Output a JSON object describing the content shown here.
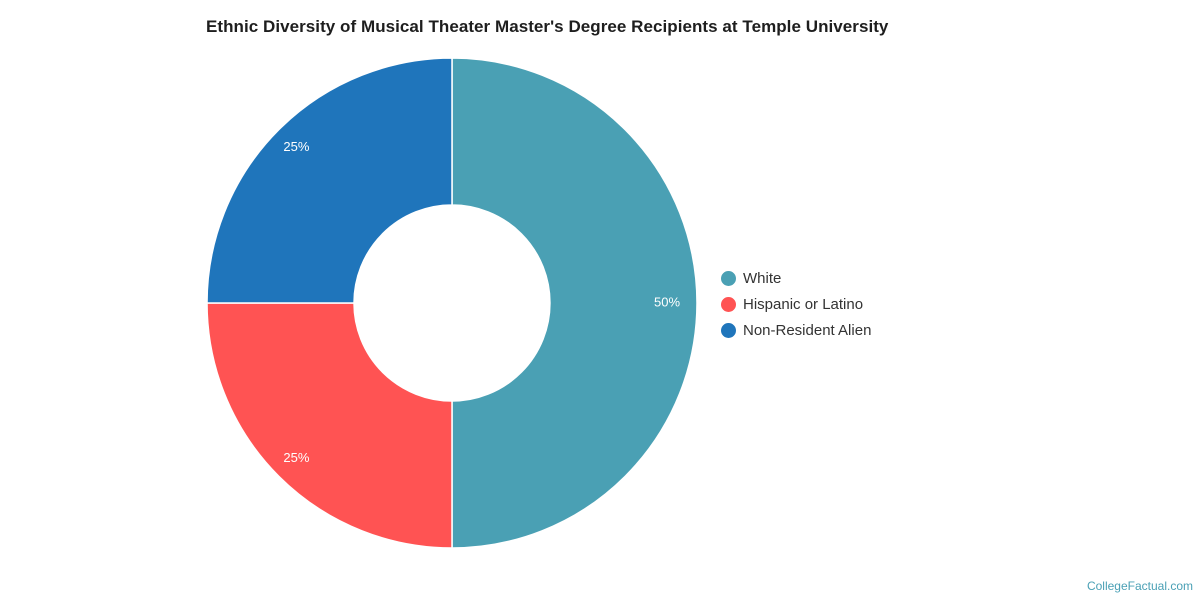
{
  "chart_data": {
    "type": "pie",
    "style": "donut",
    "title": "Ethnic Diversity of Musical Theater Master's Degree Recipients at Temple University",
    "categories": [
      "White",
      "Hispanic or Latino",
      "Non-Resident Alien"
    ],
    "values": [
      50,
      25,
      25
    ],
    "data_labels": [
      "50%",
      "25%",
      "25%"
    ],
    "colors": [
      "#4aa0b4",
      "#ff5353",
      "#1f75bb"
    ],
    "legend_position": "right"
  },
  "source": "CollegeFactual.com"
}
